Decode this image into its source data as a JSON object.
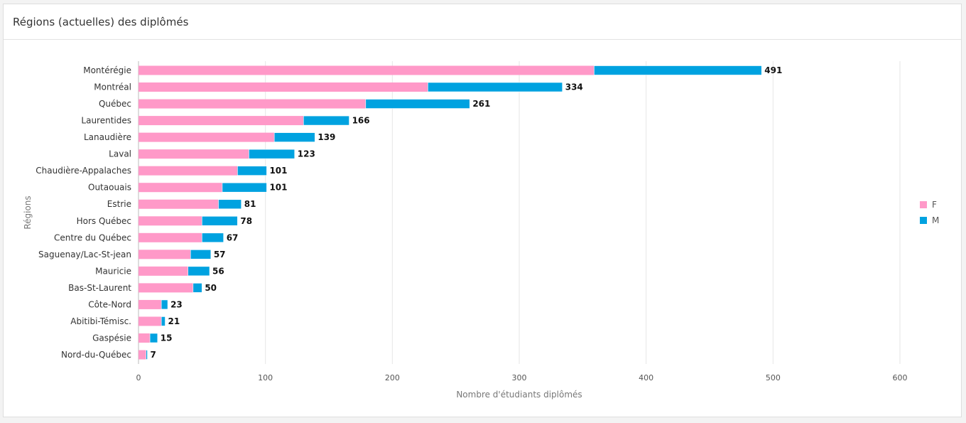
{
  "card": {
    "title": "Régions (actuelles) des diplômés"
  },
  "colors": {
    "F": "#ff99c8",
    "M": "#00a2e0"
  },
  "chart_data": {
    "type": "bar",
    "orientation": "horizontal",
    "stacked": true,
    "categories": [
      "Montérégie",
      "Montréal",
      "Québec",
      "Laurentides",
      "Lanaudière",
      "Laval",
      "Chaudière-Appalaches",
      "Outaouais",
      "Estrie",
      "Hors Québec",
      "Centre du Québec",
      "Saguenay/Lac-St-jean",
      "Mauricie",
      "Bas-St-Laurent",
      "Côte-Nord",
      "Abitibi-Témisc.",
      "Gaspésie",
      "Nord-du-Québec"
    ],
    "series": [
      {
        "name": "F",
        "values": [
          359,
          228,
          179,
          130,
          107,
          87,
          78,
          66,
          63,
          50,
          50,
          41,
          39,
          43,
          18,
          18,
          9,
          6
        ]
      },
      {
        "name": "M",
        "values": [
          132,
          106,
          82,
          36,
          32,
          36,
          23,
          35,
          18,
          28,
          17,
          16,
          17,
          7,
          5,
          3,
          6,
          1
        ]
      }
    ],
    "totals": [
      491,
      334,
      261,
      166,
      139,
      123,
      101,
      101,
      81,
      78,
      67,
      57,
      56,
      50,
      23,
      21,
      15,
      7
    ],
    "xlabel": "Nombre d'étudiants diplômés",
    "ylabel": "Régions",
    "xlim": [
      0,
      600
    ],
    "xticks": [
      "0",
      "100",
      "200",
      "300",
      "400",
      "500",
      "600"
    ],
    "grid": true,
    "legend_position": "right"
  }
}
